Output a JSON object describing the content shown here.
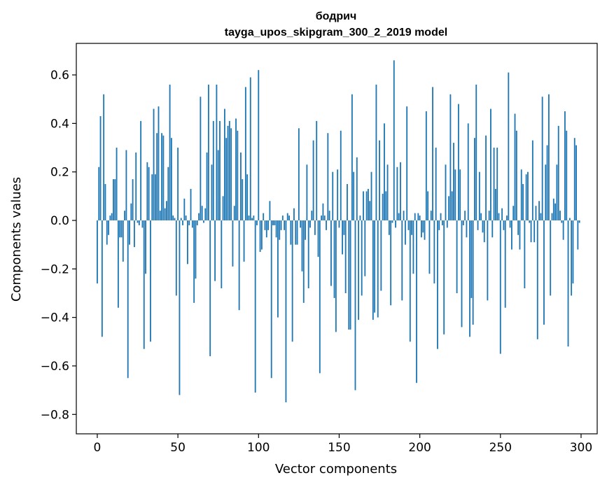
{
  "chart_data": {
    "type": "bar",
    "title": "бодрич",
    "subtitle": "tayga_upos_skipgram_300_2_2019 model",
    "xlabel": "Vector components",
    "ylabel": "Components values",
    "xlim": [
      -13,
      310
    ],
    "ylim": [
      -0.88,
      0.73
    ],
    "xticks": [
      0,
      50,
      100,
      150,
      200,
      250,
      300
    ],
    "xtick_labels": [
      "0",
      "50",
      "100",
      "150",
      "200",
      "250",
      "300"
    ],
    "yticks": [
      0.6,
      0.4,
      0.2,
      0.0,
      -0.2,
      -0.4,
      -0.6,
      -0.8
    ],
    "ytick_labels": [
      "0.6",
      "0.4",
      "0.2",
      "0.0",
      "−0.2",
      "−0.4",
      "−0.6",
      "−0.8"
    ],
    "bar_color": "#1f77b4",
    "grid": false,
    "legend": "none",
    "x": {
      "start": 0,
      "count": 300
    },
    "values": [
      -0.26,
      0.22,
      0.43,
      -0.48,
      0.52,
      0.15,
      -0.1,
      -0.06,
      0.02,
      0.03,
      0.17,
      0.17,
      0.3,
      -0.36,
      -0.07,
      -0.07,
      -0.17,
      0.04,
      0.29,
      -0.65,
      -0.1,
      0.07,
      0.17,
      -0.11,
      0.28,
      -0.01,
      -0.02,
      0.41,
      -0.03,
      -0.53,
      -0.22,
      0.24,
      0.22,
      -0.5,
      0.19,
      0.46,
      0.19,
      0.36,
      0.47,
      0.04,
      0.36,
      0.35,
      0.05,
      0.08,
      0.22,
      0.56,
      0.34,
      0.02,
      0.01,
      -0.31,
      0.3,
      -0.72,
      0.01,
      -0.02,
      0.09,
      0.02,
      -0.18,
      -0.02,
      0.13,
      -0.03,
      -0.34,
      -0.24,
      -0.02,
      0.03,
      0.51,
      0.06,
      -0.01,
      0.05,
      0.28,
      0.56,
      -0.56,
      0.23,
      0.41,
      -0.25,
      0.56,
      0.29,
      0.41,
      -0.28,
      0.1,
      0.46,
      0.34,
      0.39,
      0.41,
      0.38,
      -0.19,
      0.06,
      0.42,
      0.37,
      -0.37,
      0.28,
      0.17,
      -0.17,
      0.55,
      0.19,
      0.02,
      0.59,
      0.01,
      0.02,
      -0.71,
      -0.02,
      0.62,
      -0.13,
      -0.12,
      0.03,
      -0.04,
      -0.07,
      -0.04,
      0.08,
      -0.65,
      -0.02,
      -0.02,
      -0.07,
      -0.4,
      -0.08,
      -0.04,
      0.02,
      -0.04,
      -0.75,
      0.03,
      0.02,
      -0.1,
      -0.5,
      0.05,
      -0.1,
      -0.1,
      0.38,
      -0.03,
      -0.21,
      -0.34,
      -0.08,
      0.23,
      -0.28,
      -0.03,
      0.04,
      0.33,
      -0.06,
      0.41,
      -0.15,
      -0.63,
      0.02,
      0.07,
      0.02,
      -0.04,
      0.36,
      0.04,
      -0.27,
      0.2,
      -0.32,
      -0.46,
      0.21,
      -0.03,
      0.37,
      -0.14,
      -0.06,
      -0.3,
      0.15,
      -0.45,
      -0.45,
      0.52,
      0.2,
      -0.7,
      0.26,
      -0.41,
      0.02,
      -0.31,
      0.12,
      -0.23,
      0.12,
      0.13,
      0.08,
      0.2,
      -0.41,
      -0.38,
      0.56,
      -0.4,
      0.33,
      -0.29,
      0.11,
      0.4,
      0.12,
      0.23,
      -0.06,
      -0.35,
      -0.01,
      0.66,
      -0.03,
      0.22,
      0.03,
      0.24,
      -0.33,
      0.04,
      -0.1,
      0.47,
      -0.04,
      -0.5,
      -0.06,
      -0.22,
      0.03,
      -0.67,
      0.03,
      0.02,
      -0.07,
      -0.05,
      -0.08,
      0.45,
      0.12,
      -0.22,
      0.04,
      0.55,
      -0.26,
      0.3,
      -0.53,
      -0.04,
      0.03,
      -0.02,
      -0.47,
      0.23,
      -0.03,
      0.1,
      0.52,
      0.12,
      0.32,
      0.21,
      -0.3,
      0.48,
      0.21,
      -0.44,
      -0.02,
      0.04,
      -0.07,
      0.4,
      -0.48,
      -0.32,
      -0.43,
      0.34,
      0.56,
      -0.04,
      0.2,
      0.03,
      -0.05,
      -0.09,
      0.35,
      -0.33,
      0.04,
      0.46,
      -0.07,
      0.3,
      0.13,
      0.3,
      0.03,
      -0.55,
      0.05,
      -0.04,
      -0.36,
      0.02,
      0.61,
      -0.03,
      -0.12,
      0.06,
      0.44,
      0.37,
      -0.06,
      -0.12,
      0.21,
      0.15,
      -0.28,
      0.19,
      0.2,
      -0.01,
      -0.09,
      0.33,
      -0.09,
      0.06,
      -0.49,
      0.08,
      0.03,
      0.51,
      -0.43,
      0.23,
      0.31,
      0.52,
      -0.31,
      0.03,
      0.09,
      0.07,
      0.23,
      0.39,
      0.04,
      -0.01,
      -0.08,
      0.45,
      0.37,
      -0.52,
      0.01,
      -0.31,
      -0.26,
      0.34,
      0.31,
      -0.12,
      -0.01
    ]
  }
}
